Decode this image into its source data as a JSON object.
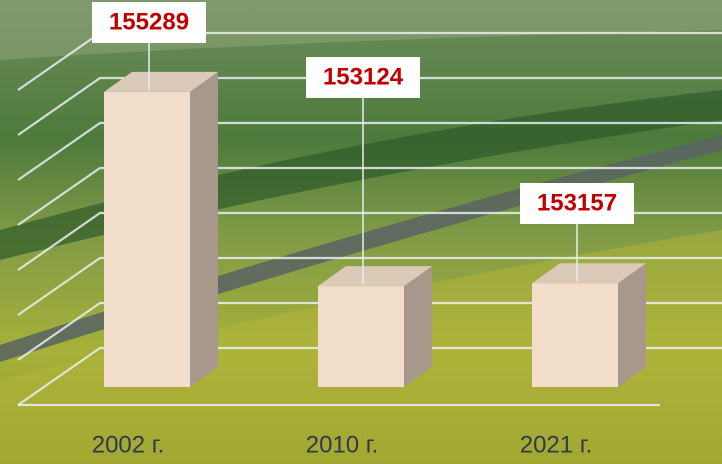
{
  "chart_data": {
    "type": "bar",
    "categories": [
      "2002 г.",
      "2010 г.",
      "2021 г."
    ],
    "values": [
      155289,
      153124,
      153157
    ],
    "color": "#f2dcca",
    "ylim": [
      152000,
      155500
    ],
    "grid": true
  }
}
